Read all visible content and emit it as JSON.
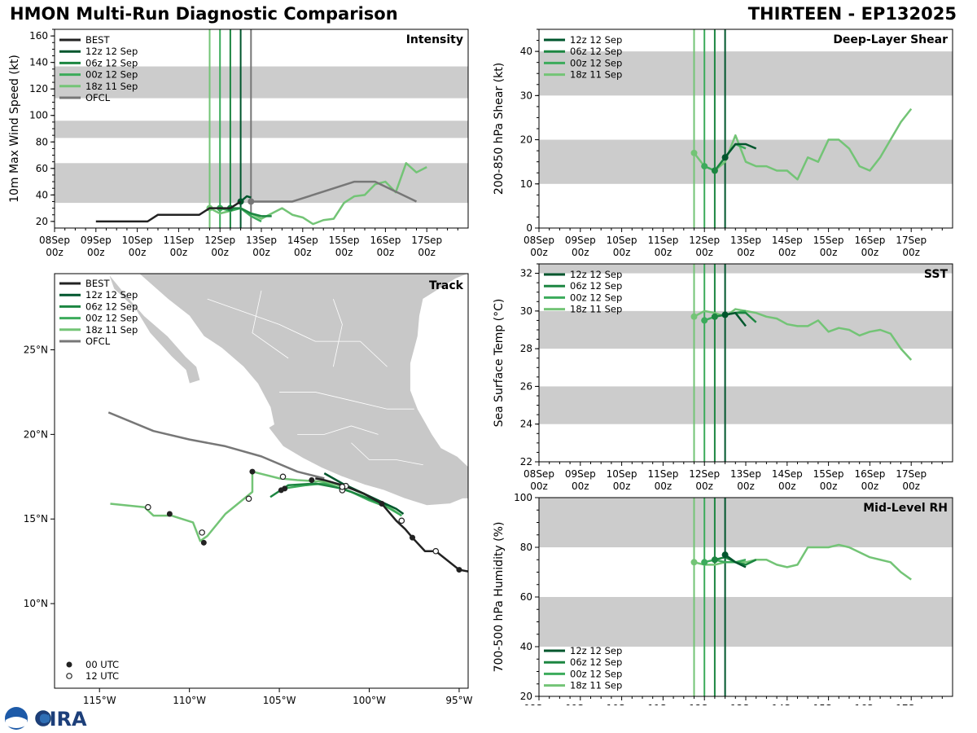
{
  "header": {
    "title": "HMON Multi-Run Diagnostic Comparison",
    "storm": "THIRTEEN - EP132025"
  },
  "colors": {
    "best": "#222222",
    "ofcl": "#777777",
    "run_12z12": "#00562d",
    "run_06z12": "#1c8641",
    "run_00z12": "#3cab5b",
    "run_18z11": "#73c476",
    "band": "#cccccc",
    "land": "#c8c8c8"
  },
  "time_axis": {
    "ticks": [
      {
        "top": "08Sep",
        "bottom": "00z"
      },
      {
        "top": "09Sep",
        "bottom": "00z"
      },
      {
        "top": "10Sep",
        "bottom": "00z"
      },
      {
        "top": "11Sep",
        "bottom": "00z"
      },
      {
        "top": "12Sep",
        "bottom": "00z"
      },
      {
        "top": "13Sep",
        "bottom": "00z"
      },
      {
        "top": "14Sep",
        "bottom": "00z"
      },
      {
        "top": "15Sep",
        "bottom": "00z"
      },
      {
        "top": "16Sep",
        "bottom": "00z"
      },
      {
        "top": "17Sep",
        "bottom": "00z"
      }
    ],
    "init_times_days_sep": {
      "run_18z11": 11.75,
      "run_00z12": 12.0,
      "run_06z12": 12.25,
      "run_12z12": 12.5,
      "ofcl": 12.75
    }
  },
  "logo": {
    "text": "CIRA",
    "sub": "NOAA"
  },
  "chart_data": [
    {
      "id": "intensity",
      "type": "line",
      "title": "Intensity",
      "ylabel": "10m Max Wind Speed (kt)",
      "xlim": [
        8,
        18
      ],
      "ylim": [
        15,
        165
      ],
      "yticks": [
        20,
        40,
        60,
        80,
        100,
        120,
        140,
        160
      ],
      "bands": [
        [
          34,
          64
        ],
        [
          83,
          96
        ],
        [
          113,
          137
        ]
      ],
      "legend": [
        "BEST",
        "12z 12 Sep",
        "06z 12 Sep",
        "00z 12 Sep",
        "18z 11 Sep",
        "OFCL"
      ],
      "series": [
        {
          "name": "BEST",
          "key": "best",
          "x": [
            9.0,
            9.25,
            9.5,
            9.75,
            10.0,
            10.25,
            10.5,
            10.75,
            11.0,
            11.25,
            11.5,
            11.75,
            12.0,
            12.25,
            12.5
          ],
          "y": [
            20,
            20,
            20,
            20,
            20,
            20,
            25,
            25,
            25,
            25,
            25,
            30,
            30,
            30,
            35
          ]
        },
        {
          "name": "12z 12 Sep",
          "key": "run_12z12",
          "x": [
            12.5,
            12.65,
            12.75
          ],
          "y": [
            35,
            39,
            38
          ]
        },
        {
          "name": "06z 12 Sep",
          "key": "run_06z12",
          "x": [
            12.25,
            12.5,
            12.75,
            13.0,
            13.25
          ],
          "y": [
            30,
            30,
            26,
            24,
            24
          ]
        },
        {
          "name": "00z 12 Sep",
          "key": "run_00z12",
          "x": [
            12.0,
            12.25,
            12.5,
            12.75,
            13.0
          ],
          "y": [
            30,
            28,
            30,
            24,
            20
          ]
        },
        {
          "name": "18z 11 Sep",
          "key": "run_18z11",
          "x": [
            11.75,
            12.0,
            12.25,
            12.5,
            12.75,
            13.0,
            13.25,
            13.5,
            13.75,
            14.0,
            14.25,
            14.5,
            14.75,
            15.0,
            15.25,
            15.5,
            15.75,
            16.0,
            16.25,
            16.5,
            16.75,
            17.0
          ],
          "y": [
            30,
            26,
            28,
            30,
            26,
            22,
            26,
            30,
            25,
            23,
            18,
            21,
            22,
            34,
            39,
            40,
            48,
            50,
            42,
            64,
            57,
            61
          ]
        },
        {
          "name": "OFCL",
          "key": "ofcl",
          "x": [
            12.75,
            13.0,
            13.75,
            15.25,
            15.75,
            16.75
          ],
          "y": [
            35,
            35,
            35,
            50,
            50,
            35
          ]
        }
      ]
    },
    {
      "id": "shear",
      "type": "line",
      "title": "Deep-Layer Shear",
      "ylabel": "200-850 hPa Shear (kt)",
      "xlim": [
        8,
        18
      ],
      "ylim": [
        0,
        45
      ],
      "yticks": [
        0,
        10,
        20,
        30,
        40
      ],
      "bands": [
        [
          10,
          20
        ],
        [
          30,
          40
        ]
      ],
      "legend": [
        "12z 12 Sep",
        "06z 12 Sep",
        "00z 12 Sep",
        "18z 11 Sep"
      ],
      "series": [
        {
          "name": "12z 12 Sep",
          "key": "run_12z12",
          "x": [
            12.5,
            12.75,
            13.0,
            13.25
          ],
          "y": [
            16,
            19,
            19,
            18
          ]
        },
        {
          "name": "06z 12 Sep",
          "key": "run_06z12",
          "x": [
            12.25,
            12.5,
            12.75
          ],
          "y": [
            13,
            16,
            19
          ]
        },
        {
          "name": "00z 12 Sep",
          "key": "run_00z12",
          "x": [
            12.0,
            12.25,
            12.5,
            12.75,
            13.0
          ],
          "y": [
            14,
            13,
            16,
            19,
            18
          ]
        },
        {
          "name": "18z 11 Sep",
          "key": "run_18z11",
          "x": [
            11.75,
            12.0,
            12.25,
            12.5,
            12.75,
            13.0,
            13.25,
            13.5,
            13.75,
            14.0,
            14.25,
            14.5,
            14.75,
            15.0,
            15.25,
            15.5,
            15.75,
            16.0,
            16.25,
            16.5,
            16.75,
            17.0
          ],
          "y": [
            17,
            14,
            13,
            15,
            21,
            15,
            14,
            14,
            13,
            13,
            11,
            16,
            15,
            20,
            20,
            18,
            14,
            13,
            16,
            20,
            24,
            27
          ]
        }
      ]
    },
    {
      "id": "sst",
      "type": "line",
      "title": "SST",
      "ylabel": "Sea Surface Temp (°C)",
      "xlim": [
        8,
        18
      ],
      "ylim": [
        22,
        32.5
      ],
      "yticks": [
        22,
        24,
        26,
        28,
        30,
        32
      ],
      "bands": [
        [
          24,
          26
        ],
        [
          28,
          30
        ],
        [
          32,
          32.5
        ]
      ],
      "legend": [
        "12z 12 Sep",
        "06z 12 Sep",
        "00z 12 Sep",
        "18z 11 Sep"
      ],
      "series": [
        {
          "name": "12z 12 Sep",
          "key": "run_12z12",
          "x": [
            12.5,
            12.75,
            13.0
          ],
          "y": [
            29.8,
            29.9,
            29.2
          ]
        },
        {
          "name": "06z 12 Sep",
          "key": "run_06z12",
          "x": [
            12.25,
            12.5,
            12.75,
            13.0,
            13.25
          ],
          "y": [
            29.7,
            29.8,
            29.9,
            29.9,
            29.4
          ]
        },
        {
          "name": "00z 12 Sep",
          "key": "run_00z12",
          "x": [
            12.0,
            12.25,
            12.5,
            12.75,
            13.0
          ],
          "y": [
            29.5,
            29.7,
            29.8,
            29.9,
            30.0
          ]
        },
        {
          "name": "18z 11 Sep",
          "key": "run_18z11",
          "x": [
            11.75,
            12.0,
            12.25,
            12.5,
            12.75,
            13.0,
            13.25,
            13.5,
            13.75,
            14.0,
            14.25,
            14.5,
            14.75,
            15.0,
            15.25,
            15.5,
            15.75,
            16.0,
            16.25,
            16.5,
            16.75,
            17.0
          ],
          "y": [
            29.7,
            30.0,
            29.9,
            29.7,
            30.1,
            30.0,
            29.9,
            29.7,
            29.6,
            29.3,
            29.2,
            29.2,
            29.5,
            28.9,
            29.1,
            29.0,
            28.7,
            28.9,
            29.0,
            28.8,
            28.0,
            27.4
          ]
        }
      ]
    },
    {
      "id": "rh",
      "type": "line",
      "title": "Mid-Level RH",
      "ylabel": "700-500 hPa Humidity (%)",
      "xlim": [
        8,
        18
      ],
      "ylim": [
        20,
        100
      ],
      "yticks": [
        20,
        40,
        60,
        80,
        100
      ],
      "bands": [
        [
          40,
          60
        ],
        [
          80,
          100
        ]
      ],
      "legend": [
        "12z 12 Sep",
        "06z 12 Sep",
        "00z 12 Sep",
        "18z 11 Sep"
      ],
      "series": [
        {
          "name": "12z 12 Sep",
          "key": "run_12z12",
          "x": [
            12.5,
            12.75,
            13.0
          ],
          "y": [
            77,
            74,
            72
          ]
        },
        {
          "name": "06z 12 Sep",
          "key": "run_06z12",
          "x": [
            12.25,
            12.5,
            12.75,
            13.0,
            13.25
          ],
          "y": [
            75,
            76,
            74,
            73,
            75
          ]
        },
        {
          "name": "00z 12 Sep",
          "key": "run_00z12",
          "x": [
            12.0,
            12.25,
            12.5,
            12.75,
            13.0
          ],
          "y": [
            74,
            75,
            74,
            74,
            75
          ]
        },
        {
          "name": "18z 11 Sep",
          "key": "run_18z11",
          "x": [
            11.75,
            12.0,
            12.25,
            12.5,
            12.75,
            13.0,
            13.25,
            13.5,
            13.75,
            14.0,
            14.25,
            14.5,
            14.75,
            15.0,
            15.25,
            15.5,
            15.75,
            16.0,
            16.25,
            16.5,
            16.75,
            17.0
          ],
          "y": [
            74,
            73,
            73,
            74,
            74,
            74,
            75,
            75,
            73,
            72,
            73,
            80,
            80,
            80,
            81,
            80,
            78,
            76,
            75,
            74,
            70,
            67
          ]
        }
      ]
    },
    {
      "id": "track",
      "type": "scatter",
      "title": "Track",
      "xlim": [
        -117.5,
        -94.5
      ],
      "ylim": [
        5,
        29.5
      ],
      "xticks": [
        {
          "v": -115,
          "label": "115°W"
        },
        {
          "v": -110,
          "label": "110°W"
        },
        {
          "v": -105,
          "label": "105°W"
        },
        {
          "v": -100,
          "label": "100°W"
        },
        {
          "v": -95,
          "label": "95°W"
        }
      ],
      "yticks": [
        {
          "v": 10,
          "label": "10°N"
        },
        {
          "v": 15,
          "label": "15°N"
        },
        {
          "v": 20,
          "label": "20°N"
        },
        {
          "v": 25,
          "label": "25°N"
        }
      ],
      "legend": [
        "BEST",
        "12z 12 Sep",
        "06z 12 Sep",
        "00z 12 Sep",
        "18z 11 Sep",
        "OFCL"
      ],
      "marker_legend": [
        "00 UTC",
        "12 UTC"
      ],
      "series": [
        {
          "name": "BEST",
          "key": "best",
          "lon": [
            -94.5,
            -95,
            -96.3,
            -96.9,
            -97.6,
            -98.0,
            -98.5,
            -99.3,
            -100.3,
            -101.5,
            -102.5,
            -103.0
          ],
          "lat": [
            11.9,
            12.0,
            13.1,
            13.1,
            13.9,
            14.4,
            14.9,
            15.9,
            16.5,
            17.0,
            17.3,
            17.4
          ]
        },
        {
          "name": "12z 12 Sep",
          "key": "run_12z12",
          "lon": [
            -102.5,
            -101.5,
            -100.5,
            -99.5,
            -98.5,
            -98.1
          ],
          "lat": [
            17.7,
            17.1,
            16.6,
            16.1,
            15.6,
            15.3
          ]
        },
        {
          "name": "06z 12 Sep",
          "key": "run_06z12",
          "lon": [
            -105.5,
            -104.5,
            -103.0,
            -101.5,
            -100.0,
            -99.0
          ],
          "lat": [
            16.3,
            17.0,
            17.1,
            16.8,
            16.2,
            15.8
          ]
        },
        {
          "name": "00z 12 Sep",
          "key": "run_00z12",
          "lon": [
            -104.8,
            -103.5,
            -102.5,
            -101.0,
            -100.0,
            -99.0,
            -98.2
          ],
          "lat": [
            16.8,
            17.0,
            17.1,
            16.6,
            16.1,
            15.7,
            15.2
          ]
        },
        {
          "name": "18z 11 Sep",
          "key": "run_18z11",
          "lon": [
            -98.2,
            -99.3,
            -101.0,
            -102.5,
            -104.0,
            -105.0,
            -106.5,
            -106.5,
            -108.0,
            -109.0,
            -109.4,
            -109.8,
            -111.0,
            -112.0,
            -112.5,
            -114.4
          ],
          "lat": [
            15.2,
            16.0,
            16.8,
            17.2,
            17.3,
            17.4,
            17.8,
            16.6,
            15.3,
            14.0,
            13.7,
            14.8,
            15.2,
            15.2,
            15.7,
            15.9
          ]
        },
        {
          "name": "OFCL",
          "key": "ofcl",
          "lon": [
            -102.5,
            -104.0,
            -106.0,
            -108.0,
            -110.0,
            -112.0,
            -114.5
          ],
          "lat": [
            17.4,
            17.8,
            18.7,
            19.3,
            19.7,
            20.2,
            21.3
          ]
        }
      ],
      "points_00utc": {
        "lon": [
          -95,
          -97.6,
          -99.3,
          -103.2,
          -104.7,
          -104.9,
          -106.5,
          -109.2,
          -111.1
        ],
        "lat": [
          12.0,
          13.9,
          15.9,
          17.3,
          16.8,
          16.7,
          17.8,
          13.6,
          15.3
        ]
      },
      "points_12utc": {
        "lon": [
          -96.3,
          -98.2,
          -101.3,
          -101.5,
          -101.5,
          -104.8,
          -106.7,
          -109.3,
          -112.3
        ],
        "lat": [
          13.1,
          14.9,
          16.95,
          16.7,
          16.9,
          17.5,
          16.2,
          14.2,
          15.7
        ]
      }
    }
  ]
}
